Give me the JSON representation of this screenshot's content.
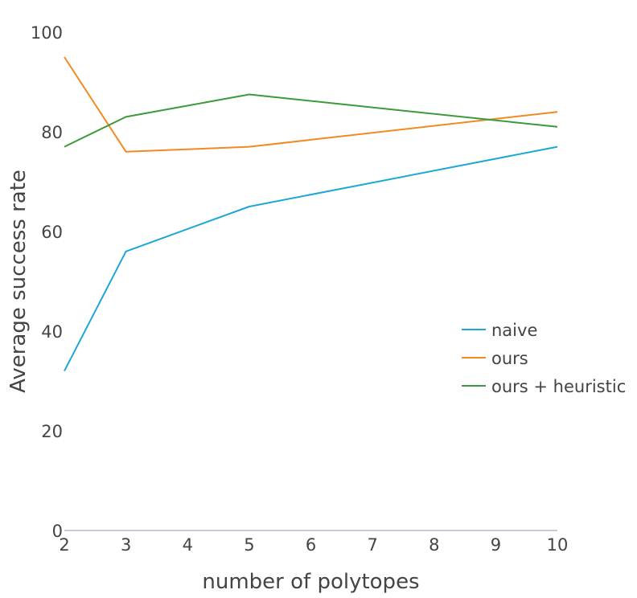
{
  "chart_data": {
    "type": "line",
    "title": "",
    "xlabel": "number of polytopes",
    "ylabel": "Average success rate",
    "xlim": [
      2,
      10
    ],
    "ylim": [
      0,
      100
    ],
    "x_ticks": [
      2,
      3,
      4,
      5,
      6,
      7,
      8,
      9,
      10
    ],
    "y_ticks": [
      0,
      20,
      40,
      60,
      80,
      100
    ],
    "grid": false,
    "legend_position": "right",
    "x": [
      2,
      3,
      5,
      10
    ],
    "series": [
      {
        "name": "naive",
        "color": "#1ea7d6",
        "values": [
          32,
          56,
          65,
          77
        ]
      },
      {
        "name": "ours",
        "color": "#f28a1f",
        "values": [
          95,
          76,
          77,
          84
        ]
      },
      {
        "name": "ours + heuristic",
        "color": "#3c9a3c",
        "values": [
          77,
          83,
          87.5,
          81
        ]
      }
    ]
  }
}
